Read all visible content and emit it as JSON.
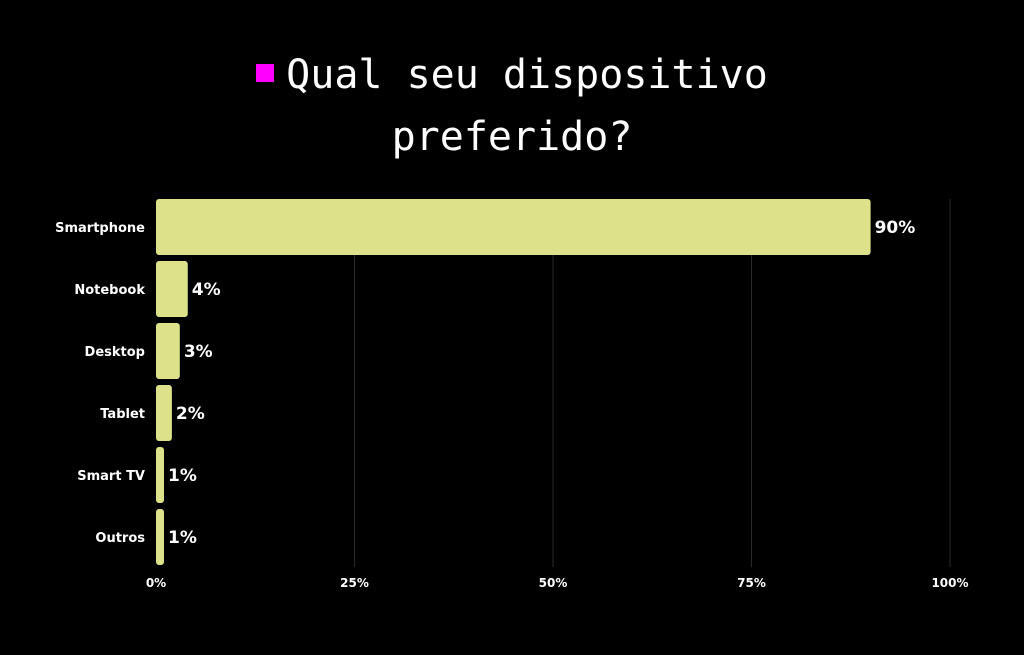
{
  "colors": {
    "background": "#000000",
    "bar": "#dde28a",
    "legend_swatch": "#ff00ff",
    "grid": "#2a2a2a",
    "text": "#ffffff"
  },
  "chart_data": {
    "type": "bar",
    "orientation": "horizontal",
    "title_lines": [
      "Qual seu dispositivo",
      "preferido?"
    ],
    "categories": [
      "Smartphone",
      "Notebook",
      "Desktop",
      "Tablet",
      "Smart TV",
      "Outros"
    ],
    "values": [
      90,
      4,
      3,
      2,
      1,
      1
    ],
    "value_labels": [
      "90%",
      "4%",
      "3%",
      "2%",
      "1%",
      "1%"
    ],
    "xlim": [
      0,
      100
    ],
    "x_ticks": [
      0,
      25,
      50,
      75,
      100
    ],
    "x_tick_labels": [
      "0%",
      "25%",
      "50%",
      "75%",
      "100%"
    ],
    "grid": true,
    "legend": "top-center"
  }
}
